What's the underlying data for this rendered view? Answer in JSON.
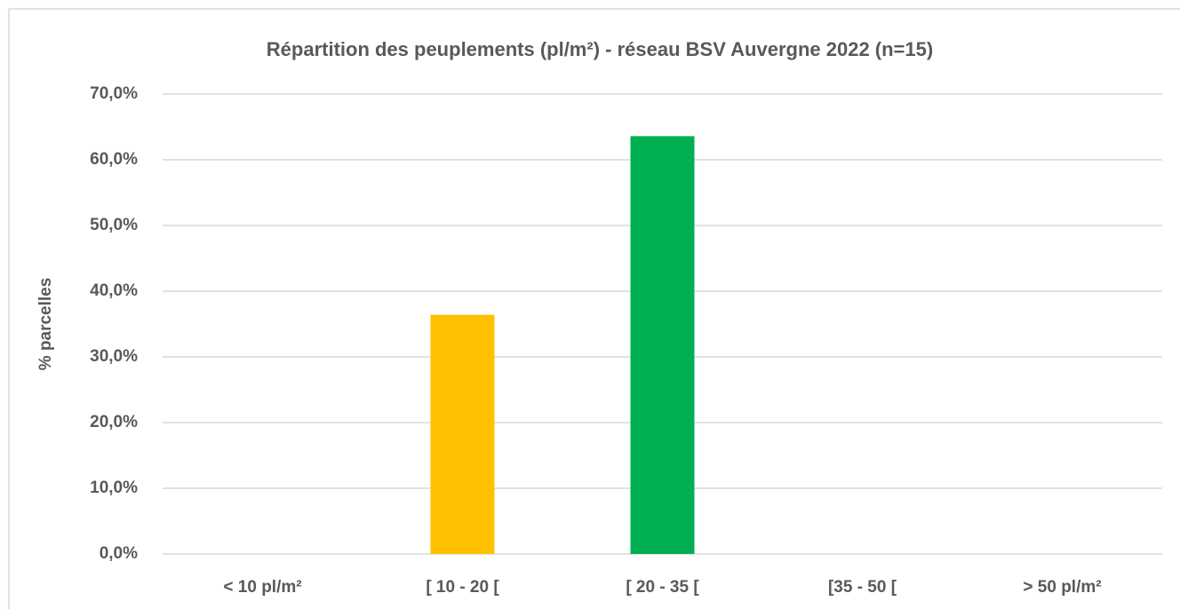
{
  "chart_data": {
    "type": "bar",
    "title": "Répartition des peuplements (pl/m²) - réseau BSV Auvergne 2022 (n=15)",
    "y_label": "% parcelles",
    "categories": [
      "< 10 pl/m²",
      "[ 10 - 20 [",
      "[ 20 - 35 [",
      "[35 - 50 [",
      "> 50 pl/m²"
    ],
    "values": [
      0,
      36.4,
      63.6,
      0,
      0
    ],
    "colors": [
      null,
      "#ffc000",
      "#00b050",
      null,
      null
    ],
    "ylim": [
      0,
      70
    ],
    "yticks": [
      {
        "value": 0,
        "label": "0,0%"
      },
      {
        "value": 10,
        "label": "10,0%"
      },
      {
        "value": 20,
        "label": "20,0%"
      },
      {
        "value": 30,
        "label": "30,0%"
      },
      {
        "value": 40,
        "label": "40,0%"
      },
      {
        "value": 50,
        "label": "50,0%"
      },
      {
        "value": 60,
        "label": "60,0%"
      },
      {
        "value": 70,
        "label": "70,0%"
      }
    ],
    "grid": true
  }
}
